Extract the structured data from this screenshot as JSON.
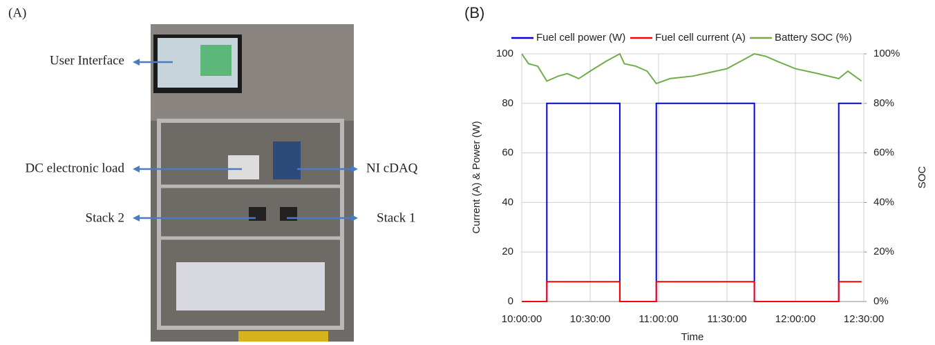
{
  "panel_a": {
    "label": "(A)",
    "callouts": [
      "User Interface",
      "DC electronic load",
      "Stack 2",
      "NI cDAQ",
      "Stack 1"
    ]
  },
  "chart_data": {
    "type": "line",
    "panel_label": "(B)",
    "xlabel": "Time",
    "ylabel": "Current (A) & Power (W)",
    "y2label": "SOC",
    "xlim": [
      "10:00:00",
      "12:30:00"
    ],
    "xticks": [
      "10:00:00",
      "10:30:00",
      "11:00:00",
      "11:30:00",
      "12:00:00",
      "12:30:00"
    ],
    "ylim": [
      0,
      100
    ],
    "yticks": [
      0,
      20,
      40,
      60,
      80,
      100
    ],
    "y2lim": [
      0,
      100
    ],
    "y2ticks": [
      {
        "value": 0,
        "label": "0%"
      },
      {
        "value": 20,
        "label": "20%"
      },
      {
        "value": 40,
        "label": "40%"
      },
      {
        "value": 60,
        "label": "60%"
      },
      {
        "value": 80,
        "label": "80%"
      },
      {
        "value": 100,
        "label": "100%"
      }
    ],
    "grid": true,
    "legend": "top",
    "series": [
      {
        "name": "Fuel cell power (W)",
        "color": "#0000ee",
        "x": [
          "10:00:00",
          "10:11:00",
          "10:11:00",
          "10:43:00",
          "10:43:00",
          "10:59:00",
          "10:59:00",
          "11:42:00",
          "11:42:00",
          "12:19:00",
          "12:19:00",
          "12:29:00"
        ],
        "values": [
          0,
          0,
          80,
          80,
          0,
          0,
          80,
          80,
          0,
          0,
          80,
          80
        ]
      },
      {
        "name": "Fuel cell current (A)",
        "color": "#ff0000",
        "x": [
          "10:00:00",
          "10:11:00",
          "10:11:00",
          "10:43:00",
          "10:43:00",
          "10:59:00",
          "10:59:00",
          "11:42:00",
          "11:42:00",
          "12:19:00",
          "12:19:00",
          "12:29:00"
        ],
        "values": [
          0,
          0,
          8,
          8,
          0,
          0,
          8,
          8,
          0,
          0,
          8,
          8
        ]
      },
      {
        "name": "Battery SOC (%)",
        "color": "#70ad47",
        "axis": "y2",
        "x": [
          "10:00:00",
          "10:03:00",
          "10:07:00",
          "10:11:00",
          "10:16:00",
          "10:20:00",
          "10:25:00",
          "10:30:00",
          "10:37:00",
          "10:43:00",
          "10:45:00",
          "10:50:00",
          "10:55:00",
          "10:59:00",
          "11:05:00",
          "11:15:00",
          "11:20:00",
          "11:30:00",
          "11:42:00",
          "11:47:00",
          "11:52:00",
          "12:00:00",
          "12:10:00",
          "12:19:00",
          "12:23:00",
          "12:29:00"
        ],
        "values": [
          100,
          96,
          95,
          89,
          91,
          92,
          90,
          93,
          97,
          100,
          96,
          95,
          93,
          88,
          90,
          91,
          92,
          94,
          100,
          99,
          97,
          94,
          92,
          90,
          93,
          89
        ]
      }
    ]
  }
}
